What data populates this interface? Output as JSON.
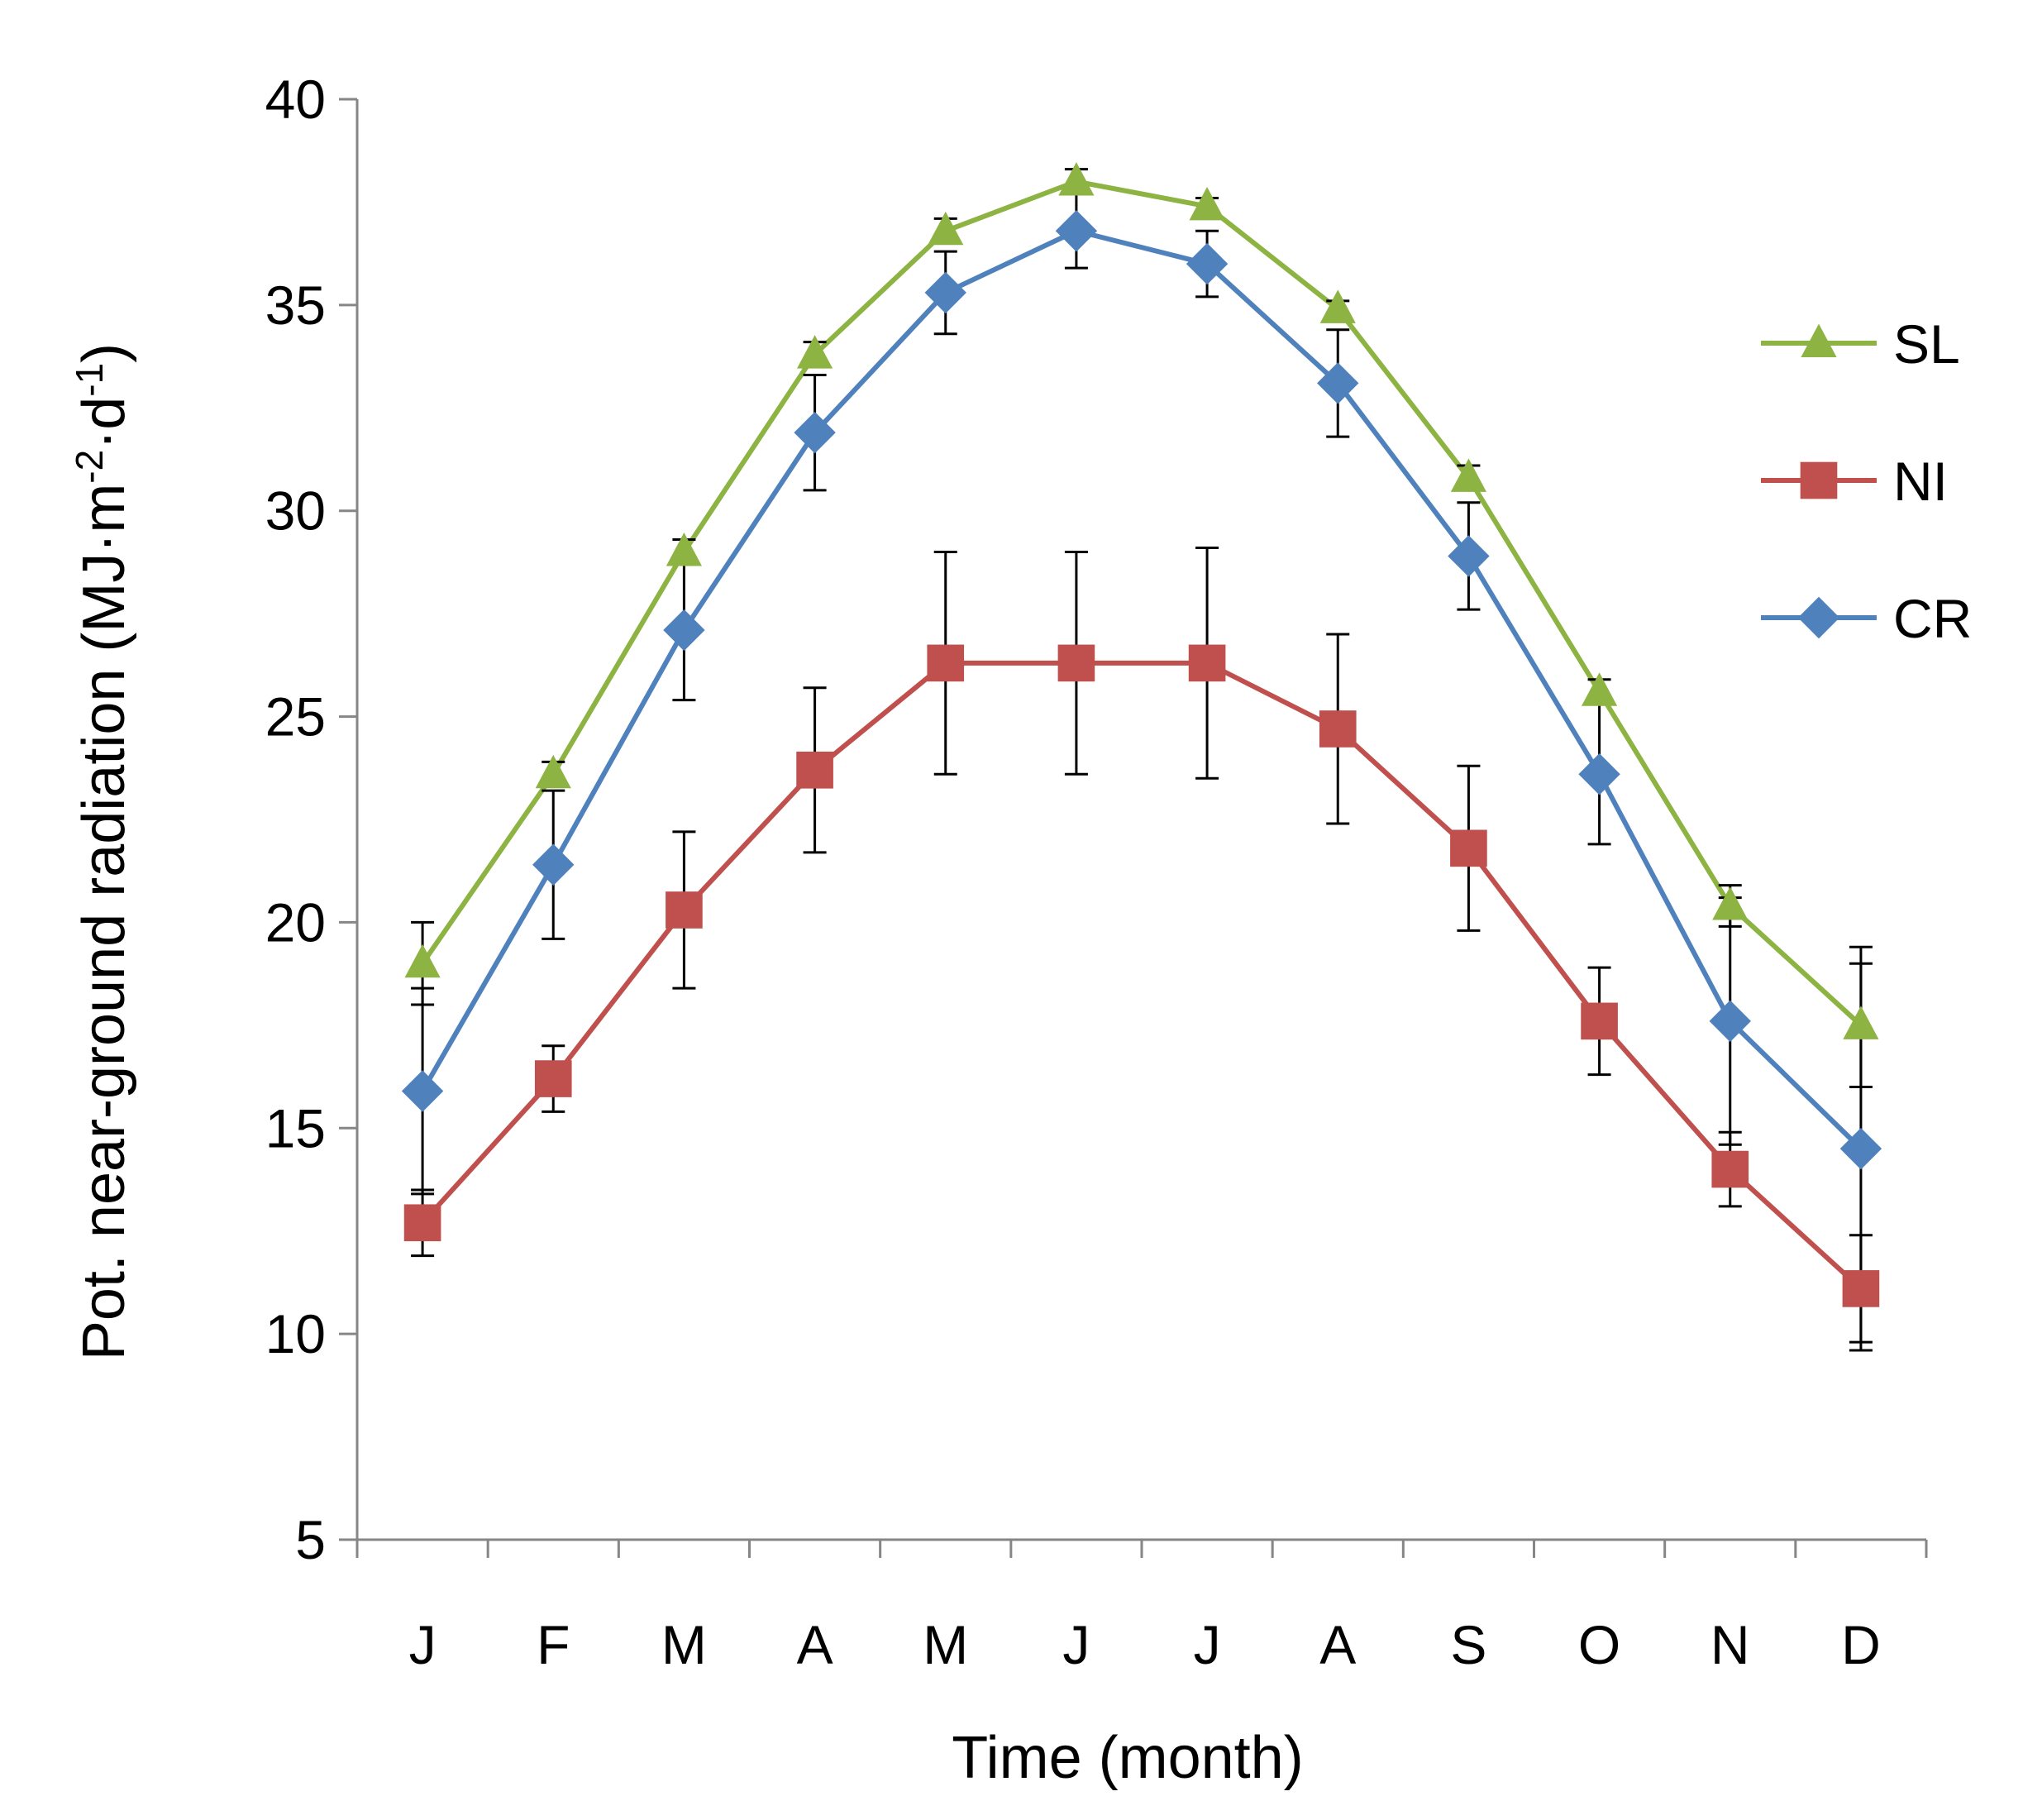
{
  "chart_data": {
    "type": "line",
    "title": "",
    "xlabel": "Time (month)",
    "ylabel": {
      "prefix": "Pot. near-ground radiation  (MJ·m",
      "sup1": "-2",
      "mid": "·d",
      "sup2": "-1",
      "suffix": ")"
    },
    "categories": [
      "J",
      "F",
      "M",
      "A",
      "M",
      "J",
      "J",
      "A",
      "S",
      "O",
      "N",
      "D"
    ],
    "ylim": [
      5,
      40
    ],
    "yticks": [
      5,
      10,
      15,
      20,
      25,
      30,
      35,
      40
    ],
    "grid": false,
    "legend_position": "right",
    "series": [
      {
        "name": "SL",
        "color": "#8db342",
        "marker": "triangle",
        "values": [
          19.0,
          23.6,
          29.0,
          33.8,
          36.8,
          38.0,
          37.4,
          34.9,
          30.8,
          25.6,
          20.4,
          17.5
        ],
        "errors": [
          1.0,
          0.3,
          0.3,
          0.3,
          0.3,
          0.3,
          0.2,
          0.2,
          0.3,
          0.3,
          0.5,
          1.5
        ]
      },
      {
        "name": "NI",
        "color": "#c0504d",
        "marker": "square",
        "values": [
          12.7,
          16.2,
          20.3,
          23.7,
          26.3,
          26.3,
          26.3,
          24.7,
          21.8,
          17.6,
          14.0,
          11.1
        ],
        "errors": [
          0.8,
          0.8,
          1.9,
          2.0,
          2.7,
          2.7,
          2.8,
          2.3,
          2.0,
          1.3,
          0.9,
          1.3
        ]
      },
      {
        "name": "CR",
        "color": "#4f81bd",
        "marker": "diamond",
        "values": [
          15.9,
          21.4,
          27.1,
          31.9,
          35.3,
          36.8,
          36.0,
          33.1,
          28.9,
          23.6,
          17.6,
          14.5
        ],
        "errors": [
          2.5,
          1.8,
          1.7,
          1.4,
          1.0,
          0.9,
          0.8,
          1.3,
          1.3,
          1.7,
          3.0,
          4.9
        ]
      }
    ]
  }
}
